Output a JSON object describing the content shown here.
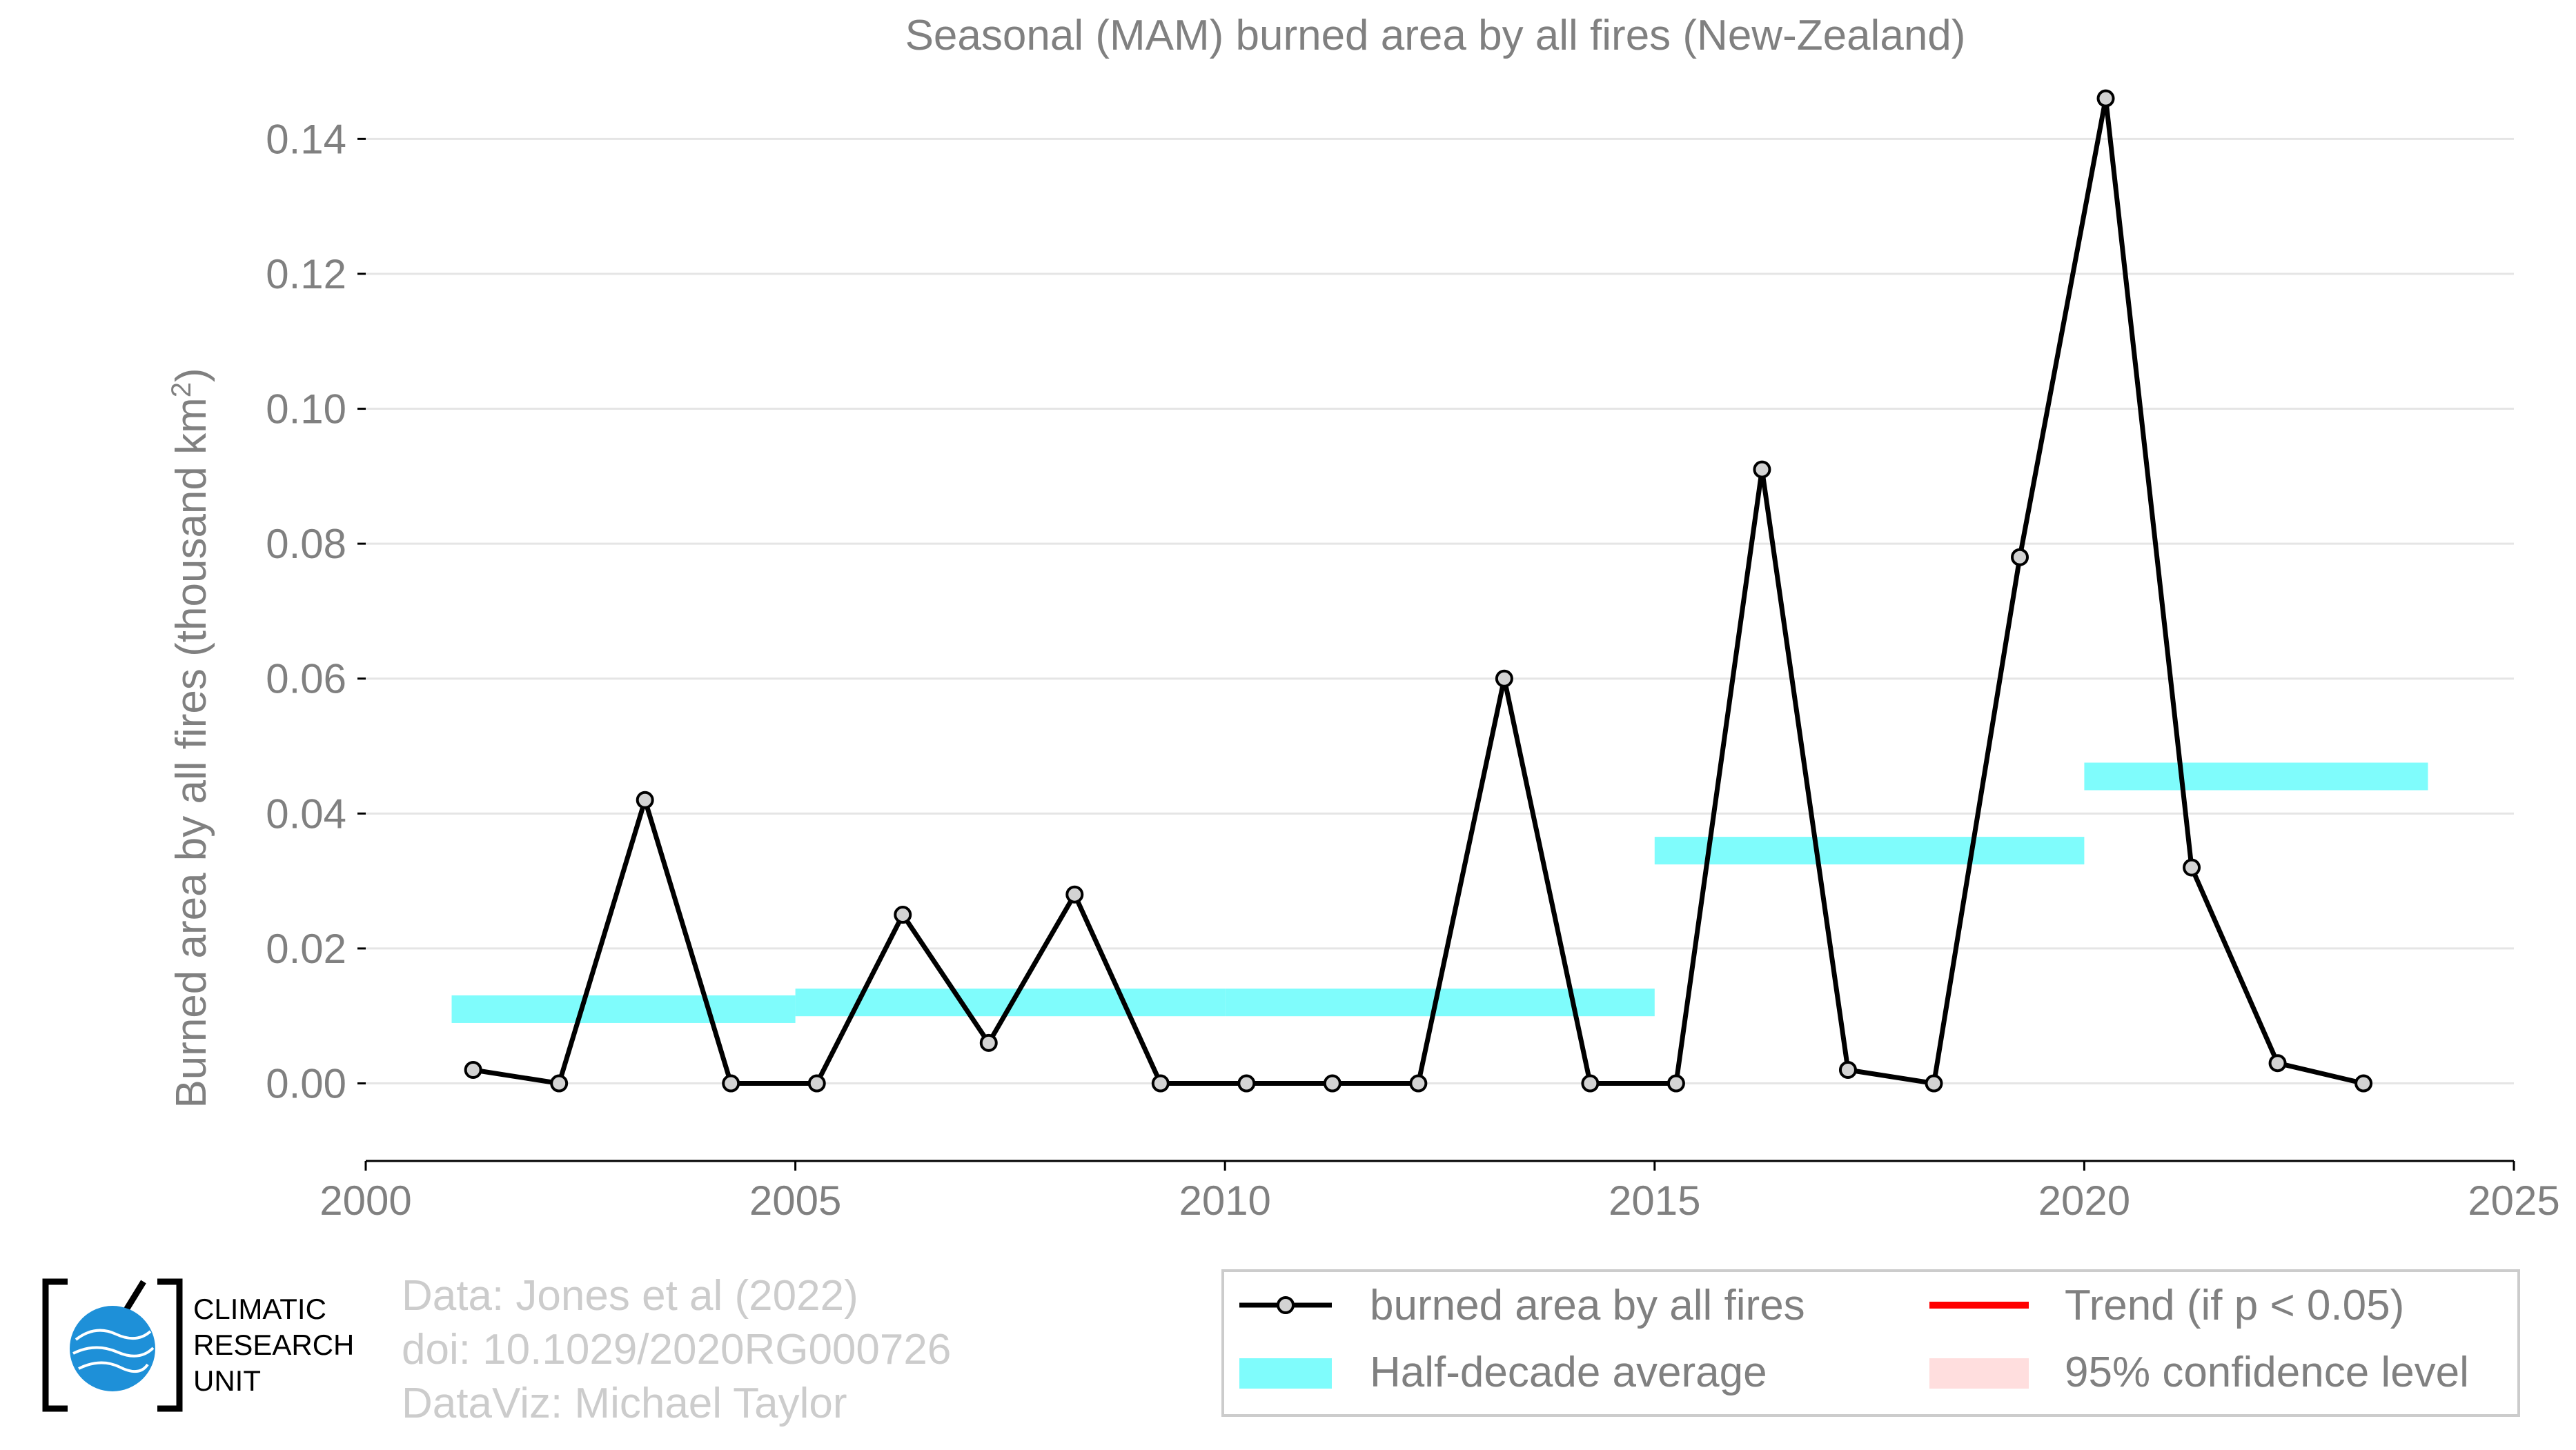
{
  "chart_data": {
    "type": "line",
    "title": "Seasonal (MAM) burned area by all fires (New-Zealand)",
    "ylabel": "Burned area by all fires (thousand km",
    "ylabel_sup": "2",
    "ylabel_tail": ")",
    "xlim": [
      2000,
      2025
    ],
    "ylim": [
      -0.0115,
      0.1475
    ],
    "x_ticks": [
      2000,
      2005,
      2010,
      2015,
      2020,
      2025
    ],
    "y_ticks": [
      "0.00",
      "0.02",
      "0.04",
      "0.06",
      "0.08",
      "0.10",
      "0.12",
      "0.14"
    ],
    "grid": true,
    "series": [
      {
        "name": "burned area by all fires",
        "color": "#000000",
        "x": [
          2001.25,
          2002.25,
          2003.25,
          2004.25,
          2005.25,
          2006.25,
          2007.25,
          2008.25,
          2009.25,
          2010.25,
          2011.25,
          2012.25,
          2013.25,
          2014.25,
          2015.25,
          2016.25,
          2017.25,
          2018.25,
          2019.25,
          2020.25,
          2021.25,
          2022.25,
          2023.25
        ],
        "values": [
          0.002,
          0.0,
          0.042,
          0.0,
          0.0,
          0.025,
          0.006,
          0.028,
          0.0,
          0.0,
          0.0,
          0.0,
          0.06,
          0.0,
          0.0,
          0.091,
          0.002,
          0.0,
          0.078,
          0.146,
          0.032,
          0.003,
          0.0
        ]
      },
      {
        "name": "Half-decade average",
        "color": "#7ffcfc",
        "segments": [
          {
            "x0": 2001,
            "x1": 2005,
            "value": 0.011
          },
          {
            "x0": 2005,
            "x1": 2010,
            "value": 0.012
          },
          {
            "x0": 2010,
            "x1": 2015,
            "value": 0.012
          },
          {
            "x0": 2015,
            "x1": 2020,
            "value": 0.0345
          },
          {
            "x0": 2020,
            "x1": 2024,
            "value": 0.0455
          }
        ]
      }
    ],
    "legend": {
      "placement": "bottom-right",
      "items": [
        {
          "label": "burned area by all fires",
          "kind": "line-marker",
          "color": "#000000"
        },
        {
          "label": "Trend (if p < 0.05)",
          "kind": "line",
          "color": "#ff0000"
        },
        {
          "label": "Half-decade average",
          "kind": "band",
          "color": "#7ffcfc"
        },
        {
          "label": "95% confidence level",
          "kind": "band",
          "color": "#ffdede"
        }
      ]
    }
  },
  "credits": {
    "line1": "Data: Jones et al (2022)",
    "line2": "doi: 10.1029/2020RG000726",
    "line3": "DataViz: Michael Taylor"
  },
  "logo": {
    "line1": "CLIMATIC",
    "line2": "RESEARCH",
    "line3": "UNIT"
  }
}
